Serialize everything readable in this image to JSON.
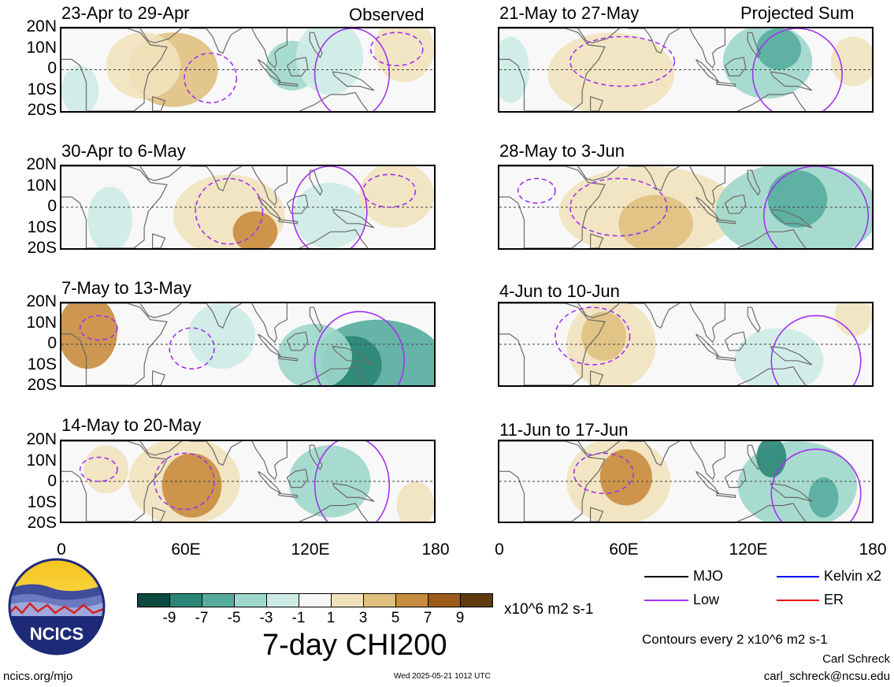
{
  "header": {
    "observed_label": "Observed",
    "projected_label": "Projected Sum"
  },
  "panels": [
    {
      "title": "23-Apr to 29-Apr"
    },
    {
      "title": "30-Apr to 6-May"
    },
    {
      "title": "7-May to 13-May"
    },
    {
      "title": "14-May to 20-May"
    },
    {
      "title": "21-May to 27-May"
    },
    {
      "title": "28-May to 3-Jun"
    },
    {
      "title": "4-Jun to 10-Jun"
    },
    {
      "title": "11-Jun to 17-Jun"
    }
  ],
  "lat_labels": [
    "20N",
    "10N",
    "0",
    "10S",
    "20S"
  ],
  "lon_labels": [
    "0",
    "60E",
    "120E",
    "180"
  ],
  "colorbar": {
    "colors": [
      "#0c4a40",
      "#2a8677",
      "#55ac9d",
      "#9ed7cb",
      "#cdebe4",
      "#f8f8f8",
      "#f1e2bc",
      "#dfc07f",
      "#c88c3e",
      "#9c5c1a",
      "#5e3b0e"
    ],
    "labels": [
      "-9",
      "-7",
      "-5",
      "-3",
      "-1",
      "1",
      "3",
      "5",
      "7",
      "9"
    ],
    "unit": "x10^6 m2 s-1"
  },
  "main_title": "7-day CHI200",
  "legend": {
    "mjo": {
      "label": "MJO",
      "color": "#000000"
    },
    "low": {
      "label": "Low",
      "color": "#a232f0"
    },
    "kelvin": {
      "label": "Kelvin x2",
      "color": "#0000ee"
    },
    "er": {
      "label": "ER",
      "color": "#ee0000"
    }
  },
  "contours_note": "Contours every 2 x10^6 m2 s-1",
  "author": "Carl Schreck",
  "email": "carl_schreck@ncsu.edu",
  "url": "ncics.org/mjo",
  "timestamp": "Wed 2025-05-21 1012 UTC",
  "logo_text": "NCICS"
}
